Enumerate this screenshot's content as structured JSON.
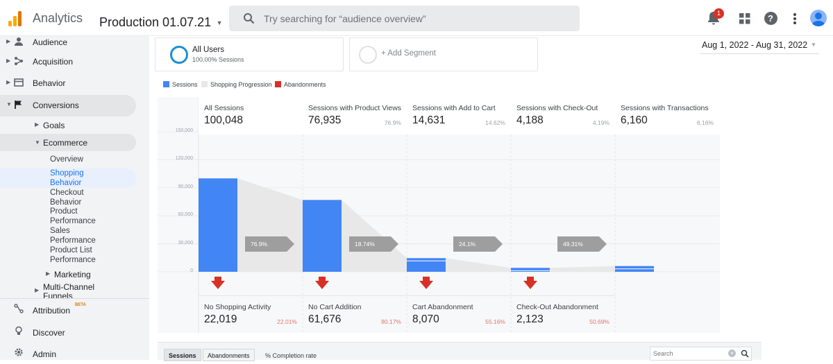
{
  "header": {
    "app_title": "Analytics",
    "account_title": "Production 01.07.21",
    "search_placeholder": "Try searching for “audience overview”",
    "notification_count": "1"
  },
  "sidebar": {
    "items": [
      {
        "label": "Audience"
      },
      {
        "label": "Acquisition"
      },
      {
        "label": "Behavior"
      },
      {
        "label": "Conversions"
      }
    ],
    "conversions_children": {
      "goals": "Goals",
      "ecommerce": "Ecommerce",
      "ecommerce_children": [
        "Overview",
        "Shopping Behavior",
        "Checkout Behavior",
        "Product Performance",
        "Sales Performance",
        "Product List Performance"
      ],
      "marketing": "Marketing",
      "multichannel": "Multi-Channel Funnels"
    },
    "attribution": "Attribution",
    "attribution_badge": "BETA",
    "discover": "Discover",
    "admin": "Admin"
  },
  "segments": {
    "all_users_title": "All Users",
    "all_users_sub": "100.00% Sessions",
    "add_segment": "+ Add Segment"
  },
  "date_range": "Aug 1, 2022 - Aug 31, 2022",
  "legend": {
    "sessions": "Sessions",
    "shopping_progression": "Shopping Progression",
    "abandonments": "Abandonments"
  },
  "chart_data": {
    "type": "bar",
    "y_ticks": [
      "150,000",
      "120,000",
      "90,000",
      "60,000",
      "30,000",
      "0"
    ],
    "ylim": [
      0,
      150000
    ],
    "stages": [
      {
        "title": "All Sessions",
        "value": "100,048",
        "pct": "",
        "sessions": 100048
      },
      {
        "title": "Sessions with Product Views",
        "value": "76,935",
        "pct": "76.9%",
        "sessions": 76935
      },
      {
        "title": "Sessions with Add to Cart",
        "value": "14,631",
        "pct": "14.62%",
        "sessions": 14631
      },
      {
        "title": "Sessions with Check-Out",
        "value": "4,188",
        "pct": "4.19%",
        "sessions": 4188
      },
      {
        "title": "Sessions with Transactions",
        "value": "6,160",
        "pct": "6.16%",
        "sessions": 6160
      }
    ],
    "progression": [
      "76.9%",
      "18.74%",
      "24.1%",
      "49.31%"
    ],
    "abandonments": [
      {
        "title": "No Shopping Activity",
        "value": "22,019",
        "pct": "22.01%"
      },
      {
        "title": "No Cart Addition",
        "value": "61,676",
        "pct": "80.17%"
      },
      {
        "title": "Cart Abandonment",
        "value": "8,070",
        "pct": "55.16%"
      },
      {
        "title": "Check-Out Abandonment",
        "value": "2,123",
        "pct": "50.69%"
      }
    ]
  },
  "bottom": {
    "tab_sessions": "Sessions",
    "tab_abandonments": "Abandonments",
    "completion_rate": "% Completion rate",
    "search_placeholder": "Search"
  },
  "colors": {
    "sessions": "#4285f4",
    "abandonments": "#d93025",
    "progression": "#e8e8e8",
    "accent": "#1a73e8"
  }
}
